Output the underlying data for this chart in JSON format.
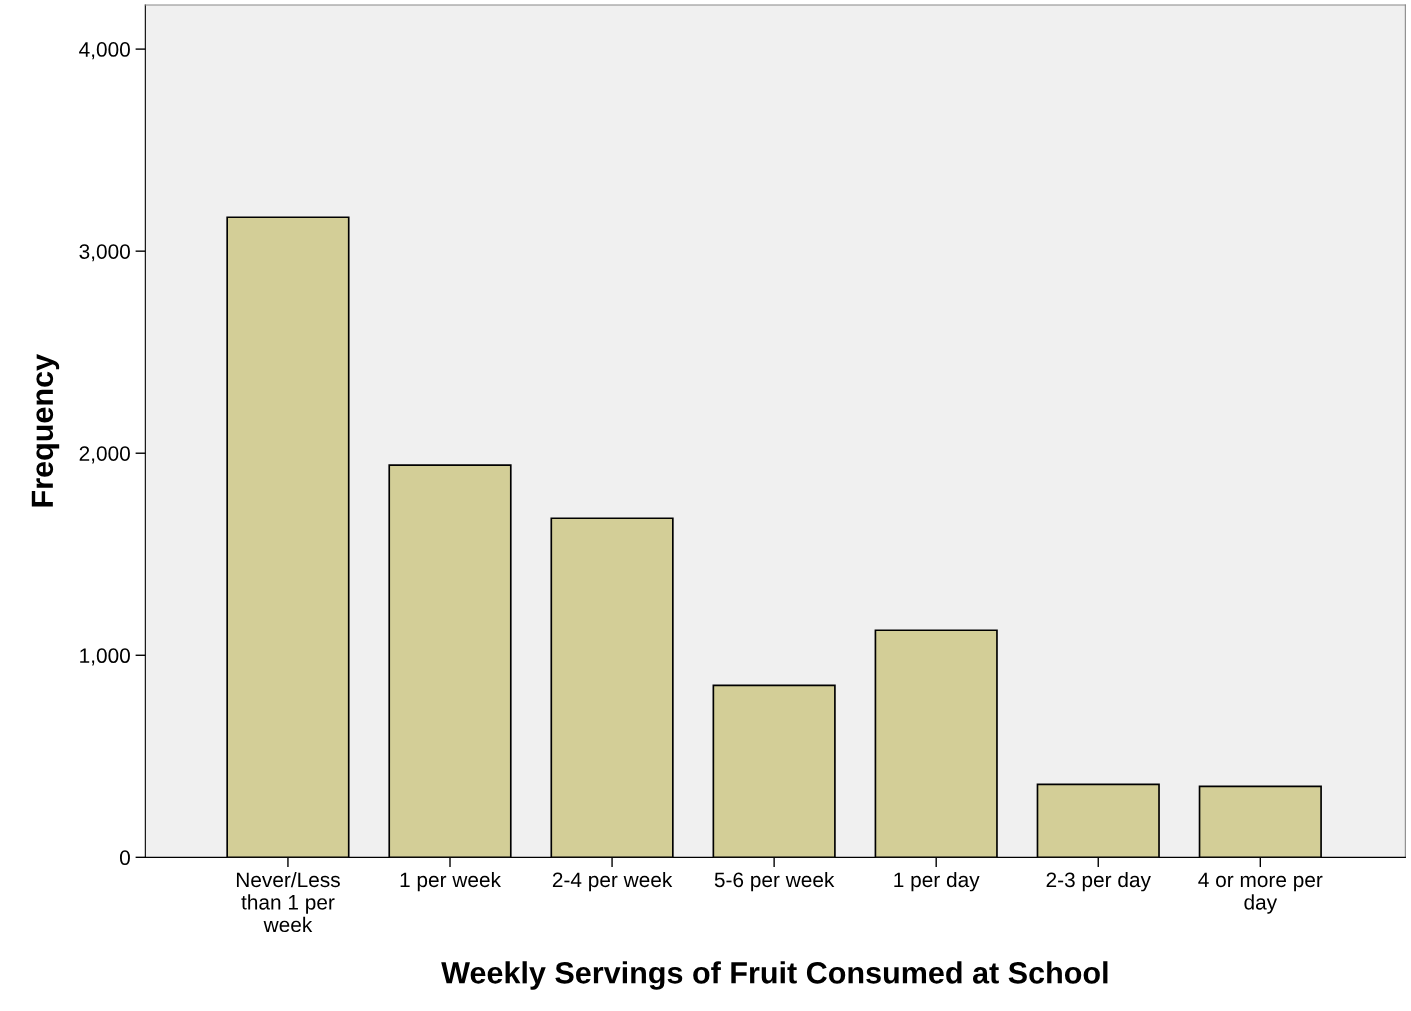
{
  "chart_data": {
    "type": "bar",
    "xlabel": "Weekly Servings of Fruit Consumed at School",
    "ylabel": "Frequency",
    "categories": [
      "Never/Less than 1 per week",
      "1 per week",
      "2-4 per week",
      "5-6 per week",
      "1 per day",
      "2-3 per day",
      "4 or more per day"
    ],
    "values": [
      3168,
      1941,
      1678,
      851,
      1124,
      361,
      351
    ],
    "color": "#d3ce97",
    "ylim": [
      0,
      4218
    ],
    "yticks": [
      0,
      {
        "value": 1000,
        "label": "1,000"
      },
      {
        "value": 2000,
        "label": "2,000"
      },
      {
        "value": 3000,
        "label": "3,000"
      },
      {
        "value": 4000,
        "label": "4,000"
      }
    ],
    "grid": false,
    "legend": false
  }
}
